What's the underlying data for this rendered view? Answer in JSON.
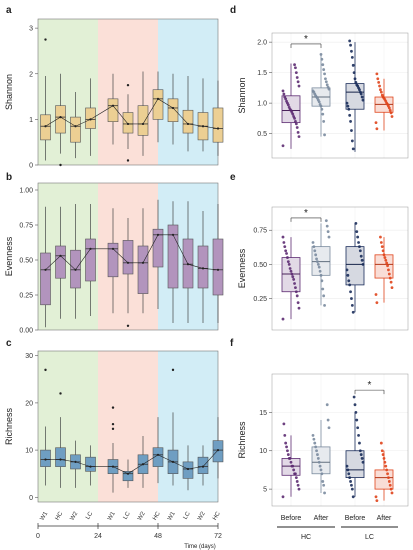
{
  "chart_data": [
    {
      "panel": "a",
      "type": "box",
      "ylabel": "Shannon",
      "ylim": [
        0,
        3.2
      ],
      "yticks": [
        0,
        1,
        2,
        3
      ],
      "phases": [
        {
          "x0": 0,
          "x1": 24,
          "color": "#e2f0d6"
        },
        {
          "x0": 24,
          "x1": 48,
          "color": "#fbe0d8"
        },
        {
          "x0": 48,
          "x1": 72,
          "color": "#d2edf6"
        }
      ],
      "boxes": [
        {
          "x": 1.5,
          "low": 0.1,
          "q1": 0.55,
          "med": 0.85,
          "q3": 1.1,
          "high": 1.95,
          "outliers": [
            2.75
          ]
        },
        {
          "x": 4.5,
          "low": 0.25,
          "q1": 0.7,
          "med": 1.05,
          "q3": 1.3,
          "high": 2.0,
          "outliers": [
            0.0
          ]
        },
        {
          "x": 7.5,
          "low": 0.15,
          "q1": 0.5,
          "med": 0.85,
          "q3": 1.05,
          "high": 1.6,
          "outliers": []
        },
        {
          "x": 10.5,
          "low": 0.2,
          "q1": 0.8,
          "med": 1.0,
          "q3": 1.25,
          "high": 1.9,
          "outliers": []
        },
        {
          "x": 15,
          "low": 0.45,
          "q1": 0.95,
          "med": 1.3,
          "q3": 1.45,
          "high": 2.0,
          "outliers": []
        },
        {
          "x": 18,
          "low": 0.35,
          "q1": 0.7,
          "med": 0.9,
          "q3": 1.15,
          "high": 1.55,
          "outliers": [
            1.75,
            0.1
          ]
        },
        {
          "x": 21,
          "low": 0.2,
          "q1": 0.65,
          "med": 0.9,
          "q3": 1.3,
          "high": 2.05,
          "outliers": []
        },
        {
          "x": 24,
          "low": 0.5,
          "q1": 1.0,
          "med": 1.45,
          "q3": 1.65,
          "high": 2.05,
          "outliers": []
        },
        {
          "x": 27,
          "low": 0.45,
          "q1": 0.95,
          "med": 1.25,
          "q3": 1.45,
          "high": 2.0,
          "outliers": []
        },
        {
          "x": 30,
          "low": 0.3,
          "q1": 0.7,
          "med": 0.9,
          "q3": 1.2,
          "high": 1.95,
          "outliers": []
        },
        {
          "x": 33,
          "low": 0.3,
          "q1": 0.55,
          "med": 0.85,
          "q3": 1.15,
          "high": 1.9,
          "outliers": []
        },
        {
          "x": 36,
          "low": 0.2,
          "q1": 0.5,
          "med": 0.8,
          "q3": 1.25,
          "high": 1.85,
          "outliers": []
        }
      ],
      "box_color": "#eccf93"
    },
    {
      "panel": "b",
      "type": "box",
      "ylabel": "Evenness",
      "ylim": [
        0,
        1.05
      ],
      "yticks": [
        0.0,
        0.25,
        0.5,
        0.75,
        1.0
      ],
      "ytick_labels": [
        "0.00",
        "0.25",
        "0.50",
        "0.75",
        "1.00"
      ],
      "phases": [
        {
          "x0": 0,
          "x1": 24,
          "color": "#e2f0d6"
        },
        {
          "x0": 24,
          "x1": 48,
          "color": "#fbe0d8"
        },
        {
          "x0": 48,
          "x1": 72,
          "color": "#d2edf6"
        }
      ],
      "boxes": [
        {
          "x": 1.5,
          "low": 0.02,
          "q1": 0.18,
          "med": 0.43,
          "q3": 0.55,
          "high": 0.88,
          "outliers": []
        },
        {
          "x": 4.5,
          "low": 0.08,
          "q1": 0.37,
          "med": 0.53,
          "q3": 0.6,
          "high": 0.88,
          "outliers": []
        },
        {
          "x": 7.5,
          "low": 0.08,
          "q1": 0.3,
          "med": 0.43,
          "q3": 0.57,
          "high": 0.9,
          "outliers": []
        },
        {
          "x": 10.5,
          "low": 0.1,
          "q1": 0.35,
          "med": 0.58,
          "q3": 0.65,
          "high": 0.9,
          "outliers": []
        },
        {
          "x": 15,
          "low": 0.12,
          "q1": 0.38,
          "med": 0.58,
          "q3": 0.62,
          "high": 0.87,
          "outliers": []
        },
        {
          "x": 18,
          "low": 0.12,
          "q1": 0.4,
          "med": 0.48,
          "q3": 0.64,
          "high": 0.8,
          "outliers": [
            0.03
          ]
        },
        {
          "x": 21,
          "low": 0.12,
          "q1": 0.26,
          "med": 0.48,
          "q3": 0.6,
          "high": 0.87,
          "outliers": []
        },
        {
          "x": 24,
          "low": 0.15,
          "q1": 0.45,
          "med": 0.68,
          "q3": 0.72,
          "high": 0.93,
          "outliers": []
        },
        {
          "x": 27,
          "low": 0.05,
          "q1": 0.3,
          "med": 0.68,
          "q3": 0.75,
          "high": 0.92,
          "outliers": []
        },
        {
          "x": 30,
          "low": 0.05,
          "q1": 0.3,
          "med": 0.47,
          "q3": 0.65,
          "high": 0.92,
          "outliers": []
        },
        {
          "x": 33,
          "low": 0.05,
          "q1": 0.3,
          "med": 0.44,
          "q3": 0.6,
          "high": 0.85,
          "outliers": []
        },
        {
          "x": 36,
          "low": 0.05,
          "q1": 0.25,
          "med": 0.43,
          "q3": 0.65,
          "high": 0.9,
          "outliers": []
        }
      ],
      "box_color": "#b294bd"
    },
    {
      "panel": "c",
      "type": "box",
      "ylabel": "Richness",
      "xlabel": "Time (days)",
      "ylim": [
        -1,
        31
      ],
      "yticks": [
        0,
        10,
        20,
        30
      ],
      "xticks": [
        0,
        24,
        48,
        72
      ],
      "xlim": [
        0,
        72
      ],
      "x_categories": [
        "W1",
        "HC",
        "W2",
        "LC",
        "W1",
        "LC",
        "W2",
        "HC",
        "W1",
        "LC",
        "W2",
        "HC"
      ],
      "phases": [
        {
          "x0": 0,
          "x1": 24,
          "color": "#e2f0d6"
        },
        {
          "x0": 24,
          "x1": 48,
          "color": "#fbe0d8"
        },
        {
          "x0": 48,
          "x1": 72,
          "color": "#d2edf6"
        }
      ],
      "boxes": [
        {
          "x": 1.5,
          "low": 2.5,
          "q1": 6.5,
          "med": 8,
          "q3": 10,
          "high": 15,
          "outliers": [
            27
          ]
        },
        {
          "x": 4.5,
          "low": 2,
          "q1": 6.5,
          "med": 8,
          "q3": 10.5,
          "high": 17,
          "outliers": [
            22
          ]
        },
        {
          "x": 7.5,
          "low": 2,
          "q1": 6,
          "med": 7.5,
          "q3": 9,
          "high": 12,
          "outliers": []
        },
        {
          "x": 10.5,
          "low": 2.5,
          "q1": 5.5,
          "med": 6.5,
          "q3": 8.5,
          "high": 11,
          "outliers": []
        },
        {
          "x": 15,
          "low": 1,
          "q1": 5,
          "med": 6.5,
          "q3": 8,
          "high": 11.5,
          "outliers": [
            19,
            15.5,
            14.5
          ]
        },
        {
          "x": 18,
          "low": 2,
          "q1": 3.5,
          "med": 5,
          "q3": 5.5,
          "high": 8,
          "outliers": []
        },
        {
          "x": 21,
          "low": 2,
          "q1": 5,
          "med": 7,
          "q3": 9,
          "high": 13,
          "outliers": []
        },
        {
          "x": 24,
          "low": 3,
          "q1": 6.5,
          "med": 9,
          "q3": 10.5,
          "high": 17,
          "outliers": []
        },
        {
          "x": 27,
          "low": 2.5,
          "q1": 5,
          "med": 7.5,
          "q3": 10,
          "high": 18,
          "outliers": [
            27
          ]
        },
        {
          "x": 30,
          "low": 1.5,
          "q1": 4,
          "med": 6,
          "q3": 7.5,
          "high": 11,
          "outliers": []
        },
        {
          "x": 33,
          "low": 2.5,
          "q1": 5,
          "med": 6.5,
          "q3": 8.5,
          "high": 11,
          "outliers": []
        },
        {
          "x": 36,
          "low": 4,
          "q1": 7.5,
          "med": 10,
          "q3": 12,
          "high": 17,
          "outliers": []
        }
      ],
      "box_color": "#6f9ec2"
    },
    {
      "panel": "d",
      "type": "box-jitter",
      "ylabel": "Shannon",
      "ylim": [
        0.1,
        2.15
      ],
      "yticks": [
        0.5,
        1.0,
        1.5,
        2.0
      ],
      "ytick_labels": [
        "0.5",
        "1.0",
        "1.5",
        "2.0"
      ],
      "significance": [
        {
          "from": 0,
          "to": 1,
          "label": "*",
          "y": 1.97
        }
      ],
      "groups": [
        {
          "color": "#5d2b72",
          "low": 0.25,
          "q1": 0.68,
          "med": 0.88,
          "q3": 1.12,
          "high": 1.65,
          "points": [
            0.3,
            0.45,
            0.52,
            0.6,
            0.66,
            0.7,
            0.75,
            0.78,
            0.82,
            0.85,
            0.88,
            0.9,
            0.93,
            0.97,
            1.0,
            1.03,
            1.07,
            1.1,
            1.15,
            1.2,
            1.28,
            1.35,
            1.42,
            1.5,
            1.58,
            1.63
          ]
        },
        {
          "color": "#7a8b9e",
          "low": 0.45,
          "q1": 0.95,
          "med": 1.1,
          "q3": 1.25,
          "high": 1.8,
          "points": [
            0.48,
            0.7,
            0.82,
            0.9,
            0.95,
            0.98,
            1.02,
            1.05,
            1.08,
            1.1,
            1.12,
            1.15,
            1.18,
            1.2,
            1.23,
            1.26,
            1.3,
            1.35,
            1.4,
            1.48,
            1.55,
            1.63,
            1.72,
            1.8
          ]
        },
        {
          "color": "#1a2c5a",
          "low": 0.2,
          "q1": 0.9,
          "med": 1.18,
          "q3": 1.32,
          "high": 2.0,
          "points": [
            0.25,
            0.38,
            0.55,
            0.7,
            0.8,
            0.9,
            0.95,
            1.0,
            1.05,
            1.1,
            1.15,
            1.18,
            1.22,
            1.25,
            1.28,
            1.3,
            1.34,
            1.4,
            1.5,
            1.62,
            1.75,
            1.85,
            1.95,
            2.02
          ]
        },
        {
          "color": "#e0441b",
          "low": 0.55,
          "q1": 0.85,
          "med": 0.98,
          "q3": 1.1,
          "high": 1.4,
          "points": [
            0.58,
            0.68,
            0.78,
            0.84,
            0.88,
            0.92,
            0.95,
            0.98,
            1.0,
            1.03,
            1.06,
            1.08,
            1.1,
            1.13,
            1.18,
            1.22,
            1.28,
            1.34,
            1.4,
            1.48
          ]
        }
      ]
    },
    {
      "panel": "e",
      "type": "box-jitter",
      "ylabel": "Evenness",
      "ylim": [
        0.02,
        0.92
      ],
      "yticks": [
        0.25,
        0.5,
        0.75
      ],
      "ytick_labels": [
        "0.25",
        "0.50",
        "0.75"
      ],
      "significance": [
        {
          "from": 0,
          "to": 1,
          "label": "*",
          "y": 0.84
        }
      ],
      "groups": [
        {
          "color": "#5d2b72",
          "low": 0.1,
          "q1": 0.3,
          "med": 0.43,
          "q3": 0.55,
          "high": 0.7,
          "points": [
            0.1,
            0.18,
            0.22,
            0.27,
            0.3,
            0.33,
            0.36,
            0.39,
            0.41,
            0.43,
            0.45,
            0.47,
            0.5,
            0.52,
            0.55,
            0.58,
            0.6,
            0.63,
            0.66,
            0.7
          ]
        },
        {
          "color": "#7a8b9e",
          "low": 0.2,
          "q1": 0.42,
          "med": 0.52,
          "q3": 0.63,
          "high": 0.8,
          "points": [
            0.2,
            0.27,
            0.32,
            0.38,
            0.42,
            0.45,
            0.48,
            0.5,
            0.52,
            0.54,
            0.57,
            0.6,
            0.63,
            0.66,
            0.7,
            0.74,
            0.78,
            0.82
          ]
        },
        {
          "color": "#1a2c5a",
          "low": 0.15,
          "q1": 0.35,
          "med": 0.5,
          "q3": 0.63,
          "high": 0.8,
          "points": [
            0.15,
            0.2,
            0.25,
            0.3,
            0.35,
            0.38,
            0.42,
            0.46,
            0.5,
            0.53,
            0.56,
            0.6,
            0.63,
            0.66,
            0.7,
            0.74,
            0.8
          ]
        },
        {
          "color": "#e0441b",
          "low": 0.22,
          "q1": 0.4,
          "med": 0.5,
          "q3": 0.57,
          "high": 0.7,
          "points": [
            0.22,
            0.28,
            0.33,
            0.37,
            0.4,
            0.43,
            0.46,
            0.49,
            0.51,
            0.53,
            0.55,
            0.57,
            0.6,
            0.63,
            0.66,
            0.7
          ]
        }
      ]
    },
    {
      "panel": "f",
      "type": "box-jitter",
      "ylabel": "Richness",
      "ylim": [
        2.8,
        20
      ],
      "yticks": [
        5,
        10,
        15
      ],
      "categories": [
        "Before",
        "After",
        "Before",
        "After"
      ],
      "group_labels": [
        {
          "label": "HC",
          "from": 0,
          "to": 1
        },
        {
          "label": "LC",
          "from": 2,
          "to": 3
        }
      ],
      "significance": [
        {
          "from": 2,
          "to": 3,
          "label": "*",
          "y": 17.9
        }
      ],
      "groups": [
        {
          "color": "#5d2b72",
          "low": 4,
          "q1": 6.8,
          "med": 8,
          "q3": 9,
          "high": 12,
          "points": [
            4,
            5,
            5.5,
            6,
            6.5,
            7,
            7,
            7.5,
            8,
            8,
            8.5,
            9,
            9,
            9.5,
            10,
            10.5,
            11,
            12,
            13.5
          ]
        },
        {
          "color": "#7a8b9e",
          "low": 4.5,
          "q1": 7,
          "med": 8.5,
          "q3": 10.5,
          "high": 14,
          "points": [
            4.5,
            5.5,
            6,
            7,
            7.5,
            8,
            8.5,
            9,
            9.5,
            10,
            10.5,
            11,
            11.5,
            12,
            13,
            14,
            16
          ]
        },
        {
          "color": "#1a2c5a",
          "low": 4,
          "q1": 6.5,
          "med": 7.5,
          "q3": 10,
          "high": 15,
          "points": [
            4,
            5,
            5.5,
            6,
            6.5,
            7,
            7.5,
            8,
            8.5,
            9,
            9.5,
            10,
            11,
            12,
            13,
            14,
            15,
            16,
            17
          ]
        },
        {
          "color": "#e0441b",
          "low": 3.5,
          "q1": 5,
          "med": 6.5,
          "q3": 7.5,
          "high": 10,
          "points": [
            3.5,
            4,
            4.5,
            5,
            5.5,
            6,
            6.5,
            7,
            7.5,
            8,
            8.5,
            9,
            9.5,
            10,
            11
          ]
        }
      ]
    }
  ]
}
